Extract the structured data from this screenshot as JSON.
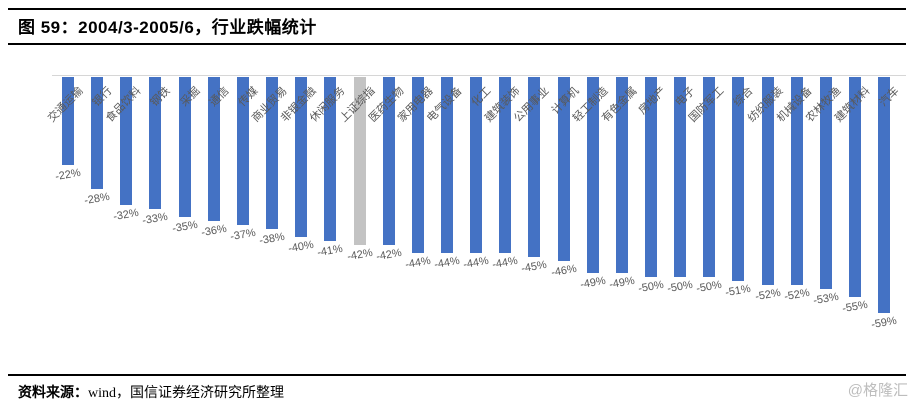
{
  "figure": {
    "title": "图 59：2004/3-2005/6，行业跌幅统计"
  },
  "chart_data": {
    "type": "bar",
    "title": "图 59：2004/3-2005/6，行业跌幅统计",
    "orientation": "vertical-negative",
    "categories": [
      "交通运输",
      "银行",
      "食品饮料",
      "钢铁",
      "采掘",
      "通信",
      "传媒",
      "商业贸易",
      "非银金融",
      "休闲服务",
      "上证综指",
      "医药生物",
      "家用电器",
      "电气设备",
      "化工",
      "建筑装饰",
      "公用事业",
      "计算机",
      "轻工制造",
      "有色金属",
      "房地产",
      "电子",
      "国防军工",
      "综合",
      "纺织服装",
      "机械设备",
      "农林牧渔",
      "建筑材料",
      "汽车"
    ],
    "values": [
      -22,
      -28,
      -32,
      -33,
      -35,
      -36,
      -37,
      -38,
      -40,
      -41,
      -42,
      -42,
      -44,
      -44,
      -44,
      -44,
      -45,
      -46,
      -49,
      -49,
      -50,
      -50,
      -50,
      -51,
      -52,
      -52,
      -53,
      -55,
      -59
    ],
    "value_suffix": "%",
    "highlight_category": "上证综指",
    "highlight_index": 10,
    "ylim": [
      -60,
      0
    ],
    "grid": false,
    "legend": "none",
    "colors": {
      "bar": "#4472c4",
      "highlight_bar": "#c3c3c3",
      "axis_line": "#d6d6d6",
      "label_text": "#595959"
    }
  },
  "footer": {
    "source_label": "资料来源：",
    "source_text": "wind，国信证券经济研究所整理",
    "watermark": "@格隆汇"
  }
}
